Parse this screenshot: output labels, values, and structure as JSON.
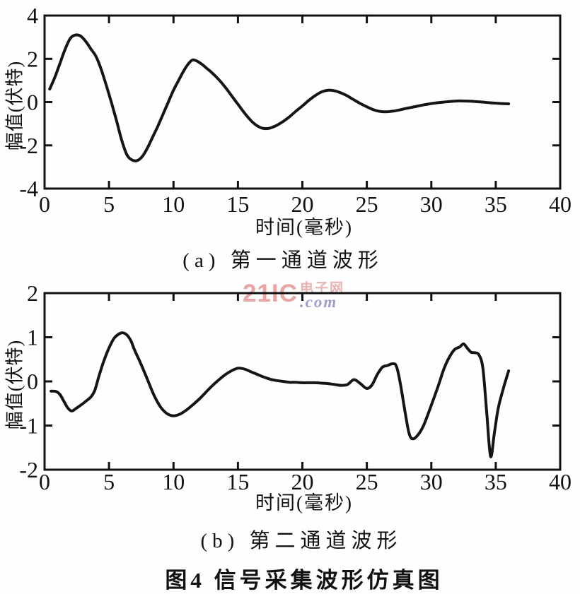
{
  "figure_title": "图4  信号采集波形仿真图",
  "watermark": {
    "brand": "21IC",
    "site_cn": "电子网",
    "domain": ".com",
    "brand_color": "#e59c9c",
    "site_color": "#e8abab",
    "domain_color": "#9494c8"
  },
  "line_color": "#151515",
  "axis_color": "#111111",
  "chart_data": [
    {
      "type": "line",
      "caption": "(a) 第一通道波形",
      "xlabel": "时间(毫秒)",
      "ylabel": "幅值(伏特)",
      "xlim": [
        0,
        40
      ],
      "ylim": [
        -4,
        4
      ],
      "x_ticks": [
        0,
        5,
        10,
        15,
        20,
        25,
        30,
        35,
        40
      ],
      "y_ticks": [
        -4,
        -2,
        0,
        2,
        4
      ],
      "grid": false,
      "legend": "none",
      "x": [
        0.4,
        0.8,
        1.2,
        1.6,
        2.0,
        2.4,
        2.8,
        3.2,
        3.6,
        4.0,
        4.4,
        4.8,
        5.2,
        5.6,
        6.0,
        6.4,
        6.8,
        7.2,
        7.6,
        8.0,
        8.4,
        8.8,
        9.2,
        9.6,
        10.0,
        10.4,
        10.8,
        11.2,
        11.5,
        11.8,
        12.2,
        12.6,
        13.0,
        13.5,
        14.0,
        14.5,
        15.0,
        15.5,
        16.0,
        16.5,
        17.0,
        17.5,
        18.0,
        18.5,
        19.0,
        19.5,
        20.0,
        20.5,
        21.0,
        21.5,
        22.0,
        22.5,
        23.0,
        23.5,
        24.0,
        24.5,
        25.0,
        25.5,
        26.0,
        26.5,
        27.0,
        27.5,
        28.0,
        28.5,
        29.0,
        29.5,
        30.0,
        30.5,
        31.0,
        31.5,
        32.0,
        32.5,
        33.0,
        33.5,
        34.0,
        34.5,
        35.0,
        35.5,
        36.0
      ],
      "y": [
        0.6,
        1.15,
        1.8,
        2.45,
        2.95,
        3.1,
        3.05,
        2.8,
        2.45,
        2.1,
        1.5,
        0.75,
        -0.05,
        -0.9,
        -1.8,
        -2.45,
        -2.68,
        -2.7,
        -2.5,
        -2.1,
        -1.6,
        -1.1,
        -0.55,
        0.0,
        0.55,
        1.0,
        1.45,
        1.8,
        1.95,
        1.9,
        1.75,
        1.55,
        1.35,
        1.05,
        0.7,
        0.3,
        -0.1,
        -0.5,
        -0.85,
        -1.1,
        -1.22,
        -1.2,
        -1.08,
        -0.9,
        -0.68,
        -0.42,
        -0.18,
        0.08,
        0.3,
        0.47,
        0.55,
        0.52,
        0.42,
        0.28,
        0.1,
        -0.07,
        -0.22,
        -0.35,
        -0.43,
        -0.45,
        -0.42,
        -0.37,
        -0.3,
        -0.24,
        -0.18,
        -0.12,
        -0.07,
        -0.03,
        0.0,
        0.03,
        0.05,
        0.05,
        0.04,
        0.02,
        0.0,
        -0.03,
        -0.05,
        -0.07,
        -0.08
      ]
    },
    {
      "type": "line",
      "caption": "(b) 第二通道波形",
      "xlabel": "时间(毫秒)",
      "ylabel": "幅值(伏特)",
      "xlim": [
        0,
        40
      ],
      "ylim": [
        -2,
        2
      ],
      "x_ticks": [
        0,
        5,
        10,
        15,
        20,
        25,
        30,
        35,
        40
      ],
      "y_ticks": [
        -2,
        -1,
        0,
        1,
        2
      ],
      "grid": false,
      "legend": "none",
      "x": [
        0.5,
        0.9,
        1.2,
        1.5,
        1.8,
        2.1,
        2.4,
        2.8,
        3.2,
        3.6,
        3.9,
        4.2,
        4.5,
        4.8,
        5.1,
        5.4,
        5.8,
        6.1,
        6.4,
        6.7,
        7.0,
        7.5,
        8.0,
        8.5,
        9.0,
        9.5,
        10.0,
        10.5,
        11.0,
        11.5,
        12.0,
        12.5,
        13.0,
        13.5,
        14.0,
        14.5,
        15.0,
        15.5,
        16.0,
        16.5,
        17.0,
        17.5,
        18.0,
        18.5,
        19.0,
        19.5,
        20.0,
        20.5,
        21.0,
        21.5,
        22.0,
        22.5,
        23.0,
        23.5,
        24.0,
        24.5,
        25.0,
        25.4,
        25.8,
        26.2,
        26.6,
        27.0,
        27.3,
        27.6,
        28.0,
        28.3,
        28.6,
        29.0,
        29.4,
        29.8,
        30.2,
        30.6,
        31.0,
        31.4,
        31.8,
        32.2,
        32.5,
        32.8,
        33.1,
        33.4,
        33.7,
        34.0,
        34.3,
        34.6,
        34.9,
        35.2,
        35.6,
        36.0
      ],
      "y": [
        -0.22,
        -0.23,
        -0.3,
        -0.45,
        -0.6,
        -0.67,
        -0.62,
        -0.54,
        -0.45,
        -0.35,
        -0.2,
        0.1,
        0.38,
        0.62,
        0.82,
        0.98,
        1.08,
        1.1,
        1.05,
        0.92,
        0.7,
        0.38,
        0.03,
        -0.32,
        -0.58,
        -0.73,
        -0.78,
        -0.74,
        -0.65,
        -0.53,
        -0.4,
        -0.25,
        -0.1,
        0.03,
        0.15,
        0.24,
        0.3,
        0.28,
        0.22,
        0.16,
        0.1,
        0.05,
        0.02,
        0.0,
        -0.02,
        -0.02,
        -0.03,
        -0.03,
        -0.03,
        -0.04,
        -0.05,
        -0.07,
        -0.09,
        -0.07,
        0.04,
        -0.05,
        -0.16,
        -0.08,
        0.15,
        0.32,
        0.36,
        0.4,
        0.34,
        -0.05,
        -0.75,
        -1.2,
        -1.3,
        -1.2,
        -1.0,
        -0.7,
        -0.38,
        -0.05,
        0.3,
        0.55,
        0.72,
        0.78,
        0.85,
        0.75,
        0.66,
        0.65,
        0.6,
        0.3,
        -0.7,
        -1.7,
        -1.15,
        -0.6,
        -0.15,
        0.24
      ]
    }
  ]
}
